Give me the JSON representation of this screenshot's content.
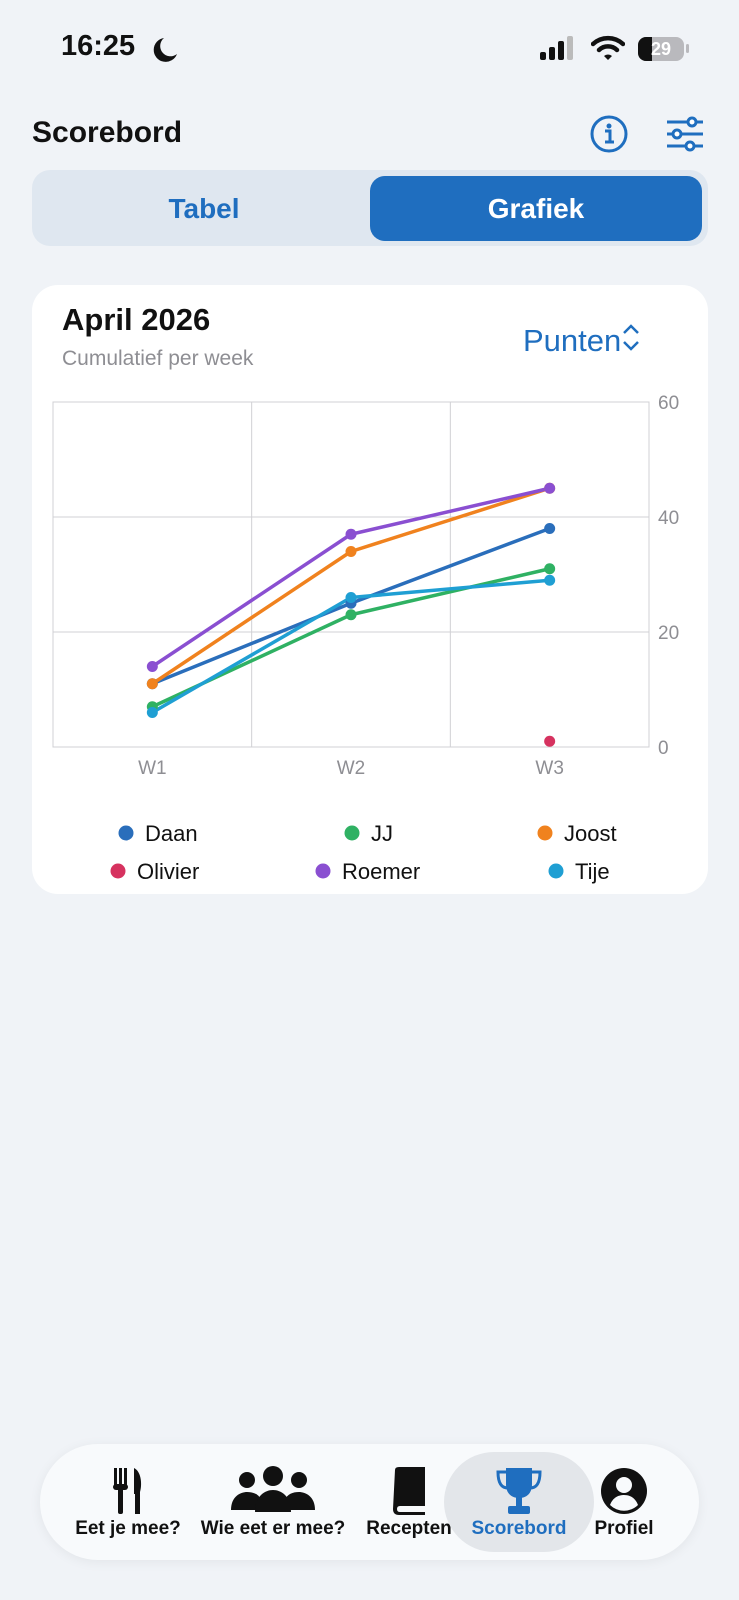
{
  "status_bar": {
    "time": "16:25",
    "battery": "29"
  },
  "header": {
    "title": "Scorebord"
  },
  "segmented_control": {
    "options": [
      "Tabel",
      "Grafiek"
    ],
    "selected": 1
  },
  "chart_data": {
    "type": "line",
    "title": "April 2026",
    "subtitle": "Cumulatief per week",
    "metric": "Punten",
    "categories": [
      "W1",
      "W2",
      "W3"
    ],
    "series": [
      {
        "name": "Daan",
        "color": "#2a6ebb",
        "values": [
          11,
          25,
          38
        ]
      },
      {
        "name": "JJ",
        "color": "#2fb163",
        "values": [
          7,
          23,
          31
        ]
      },
      {
        "name": "Joost",
        "color": "#f0821e",
        "values": [
          11,
          34,
          45
        ]
      },
      {
        "name": "Olivier",
        "color": "#d6325f",
        "values": [
          null,
          null,
          1
        ]
      },
      {
        "name": "Roemer",
        "color": "#8a4fd1",
        "values": [
          14,
          37,
          45
        ]
      },
      {
        "name": "Tije",
        "color": "#1f9fd3",
        "values": [
          6,
          26,
          29
        ]
      }
    ],
    "ylim": [
      0,
      60
    ],
    "yticks": [
      0,
      20,
      40,
      60
    ],
    "grid": true
  },
  "tab_bar": {
    "items": [
      "Eet je mee?",
      "Wie eet er mee?",
      "Recepten",
      "Scorebord",
      "Profiel"
    ],
    "selected": 3
  }
}
